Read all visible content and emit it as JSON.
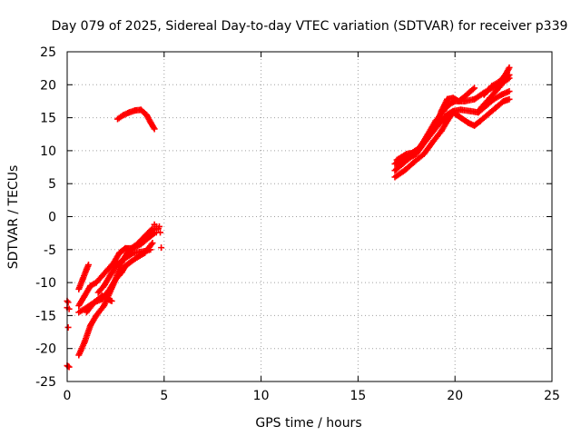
{
  "chart_data": {
    "type": "scatter",
    "title": "Day 079 of 2025, Sidereal Day-to-day VTEC variation (SDTVAR) for receiver p339",
    "xlabel": "GPS time / hours",
    "ylabel": "SDTVAR / TECUs",
    "xlim": [
      0,
      25
    ],
    "ylim": [
      -25,
      25
    ],
    "xticks": [
      0,
      5,
      10,
      15,
      20,
      25
    ],
    "yticks": [
      -25,
      -20,
      -15,
      -10,
      -5,
      0,
      5,
      10,
      15,
      20,
      25
    ],
    "grid": true,
    "marker": "plus",
    "color": "#ff0000",
    "series": [
      {
        "points": [
          [
            0.0,
            -22.6
          ],
          [
            0.05,
            -22.7
          ],
          [
            0.1,
            -22.8
          ],
          [
            0.0,
            -12.8
          ],
          [
            0.05,
            -13.0
          ],
          [
            0.0,
            -13.8
          ],
          [
            0.1,
            -14.0
          ],
          [
            0.05,
            -16.8
          ],
          [
            4.5,
            -1.2
          ],
          [
            4.6,
            -1.5
          ],
          [
            4.75,
            -1.5
          ],
          [
            4.5,
            -2.0
          ],
          [
            4.6,
            -2.4
          ],
          [
            4.7,
            -1.8
          ],
          [
            4.8,
            -2.4
          ],
          [
            4.85,
            -4.7
          ]
        ]
      }
    ],
    "tracks": [
      [
        [
          0.6,
          -21.0
        ],
        [
          0.9,
          -19.0
        ],
        [
          1.2,
          -16.5
        ],
        [
          1.5,
          -15.0
        ],
        [
          1.9,
          -13.5
        ],
        [
          2.2,
          -11.5
        ],
        [
          2.5,
          -9.5
        ],
        [
          2.8,
          -7.0
        ],
        [
          3.1,
          -5.5
        ],
        [
          3.4,
          -4.8
        ],
        [
          3.8,
          -4.2
        ],
        [
          4.2,
          -3.2
        ],
        [
          4.5,
          -2.5
        ]
      ],
      [
        [
          0.6,
          -14.5
        ],
        [
          1.0,
          -13.8
        ],
        [
          1.4,
          -13.0
        ],
        [
          1.8,
          -12.5
        ],
        [
          2.2,
          -11.0
        ],
        [
          2.5,
          -9.5
        ],
        [
          2.8,
          -8.5
        ],
        [
          3.0,
          -7.5
        ],
        [
          3.3,
          -6.8
        ],
        [
          3.6,
          -6.2
        ],
        [
          4.0,
          -5.5
        ],
        [
          4.4,
          -4.0
        ]
      ],
      [
        [
          0.6,
          -13.5
        ],
        [
          0.9,
          -12.0
        ],
        [
          1.2,
          -10.5
        ],
        [
          1.5,
          -10.0
        ],
        [
          1.8,
          -9.0
        ],
        [
          2.1,
          -8.0
        ],
        [
          2.4,
          -7.0
        ],
        [
          2.7,
          -5.5
        ],
        [
          3.0,
          -4.8
        ],
        [
          3.3,
          -4.8
        ],
        [
          3.6,
          -4.2
        ],
        [
          4.0,
          -3.0
        ],
        [
          4.4,
          -1.8
        ]
      ],
      [
        [
          0.6,
          -11.0
        ],
        [
          0.8,
          -9.5
        ],
        [
          1.0,
          -8.0
        ],
        [
          1.1,
          -7.3
        ]
      ],
      [
        [
          1.0,
          -14.5
        ],
        [
          1.4,
          -13.0
        ],
        [
          1.8,
          -12.0
        ],
        [
          2.1,
          -12.5
        ],
        [
          2.3,
          -12.8
        ]
      ],
      [
        [
          1.6,
          -11.5
        ],
        [
          1.9,
          -10.5
        ],
        [
          2.2,
          -9.0
        ],
        [
          2.5,
          -7.5
        ],
        [
          2.9,
          -6.5
        ],
        [
          3.4,
          -5.5
        ],
        [
          3.9,
          -5.3
        ],
        [
          4.3,
          -5.0
        ]
      ],
      [
        [
          2.6,
          14.8
        ],
        [
          2.9,
          15.4
        ],
        [
          3.2,
          15.8
        ],
        [
          3.5,
          16.1
        ],
        [
          3.8,
          16.2
        ],
        [
          4.1,
          15.4
        ],
        [
          4.3,
          14.3
        ],
        [
          4.5,
          13.3
        ]
      ],
      [
        [
          16.9,
          6.0
        ],
        [
          17.4,
          7.0
        ],
        [
          17.9,
          8.3
        ],
        [
          18.4,
          9.5
        ],
        [
          18.9,
          11.5
        ],
        [
          19.3,
          13.0
        ],
        [
          19.6,
          14.5
        ],
        [
          19.9,
          15.8
        ],
        [
          20.3,
          15.0
        ],
        [
          20.7,
          14.2
        ],
        [
          21.0,
          13.8
        ],
        [
          21.3,
          14.5
        ],
        [
          21.7,
          15.5
        ],
        [
          22.1,
          16.5
        ],
        [
          22.5,
          17.5
        ],
        [
          22.8,
          17.8
        ]
      ],
      [
        [
          16.9,
          7.0
        ],
        [
          17.3,
          8.0
        ],
        [
          17.7,
          9.0
        ],
        [
          18.0,
          9.5
        ],
        [
          18.5,
          11.5
        ],
        [
          18.9,
          13.0
        ],
        [
          19.3,
          14.5
        ],
        [
          19.6,
          15.5
        ],
        [
          19.9,
          16.0
        ],
        [
          20.3,
          16.2
        ],
        [
          20.8,
          16.0
        ],
        [
          21.2,
          15.8
        ],
        [
          21.6,
          16.8
        ],
        [
          22.0,
          17.8
        ],
        [
          22.4,
          18.5
        ],
        [
          22.8,
          19.0
        ]
      ],
      [
        [
          16.9,
          8.0
        ],
        [
          17.3,
          8.8
        ],
        [
          17.7,
          9.5
        ],
        [
          18.2,
          10.5
        ],
        [
          18.6,
          12.5
        ],
        [
          19.0,
          14.5
        ],
        [
          19.4,
          16.0
        ],
        [
          19.7,
          17.0
        ],
        [
          20.0,
          17.5
        ],
        [
          20.5,
          17.5
        ],
        [
          21.0,
          17.8
        ],
        [
          21.5,
          18.8
        ],
        [
          21.9,
          19.5
        ],
        [
          22.3,
          20.0
        ],
        [
          22.8,
          21.0
        ]
      ],
      [
        [
          17.0,
          8.6
        ],
        [
          17.5,
          9.5
        ],
        [
          18.0,
          9.8
        ],
        [
          18.3,
          11.0
        ],
        [
          18.6,
          12.0
        ],
        [
          19.0,
          13.5
        ],
        [
          19.3,
          16.0
        ],
        [
          19.6,
          17.8
        ],
        [
          19.9,
          18.0
        ],
        [
          20.2,
          17.5
        ],
        [
          20.5,
          18.2
        ],
        [
          20.8,
          19.0
        ],
        [
          21.0,
          19.5
        ]
      ],
      [
        [
          21.2,
          16.0
        ],
        [
          21.5,
          17.0
        ],
        [
          21.8,
          18.0
        ],
        [
          22.1,
          19.0
        ],
        [
          22.4,
          20.0
        ],
        [
          22.8,
          21.5
        ]
      ],
      [
        [
          21.5,
          18.5
        ],
        [
          21.9,
          19.8
        ],
        [
          22.3,
          20.5
        ],
        [
          22.6,
          21.5
        ],
        [
          22.8,
          22.6
        ]
      ]
    ]
  }
}
